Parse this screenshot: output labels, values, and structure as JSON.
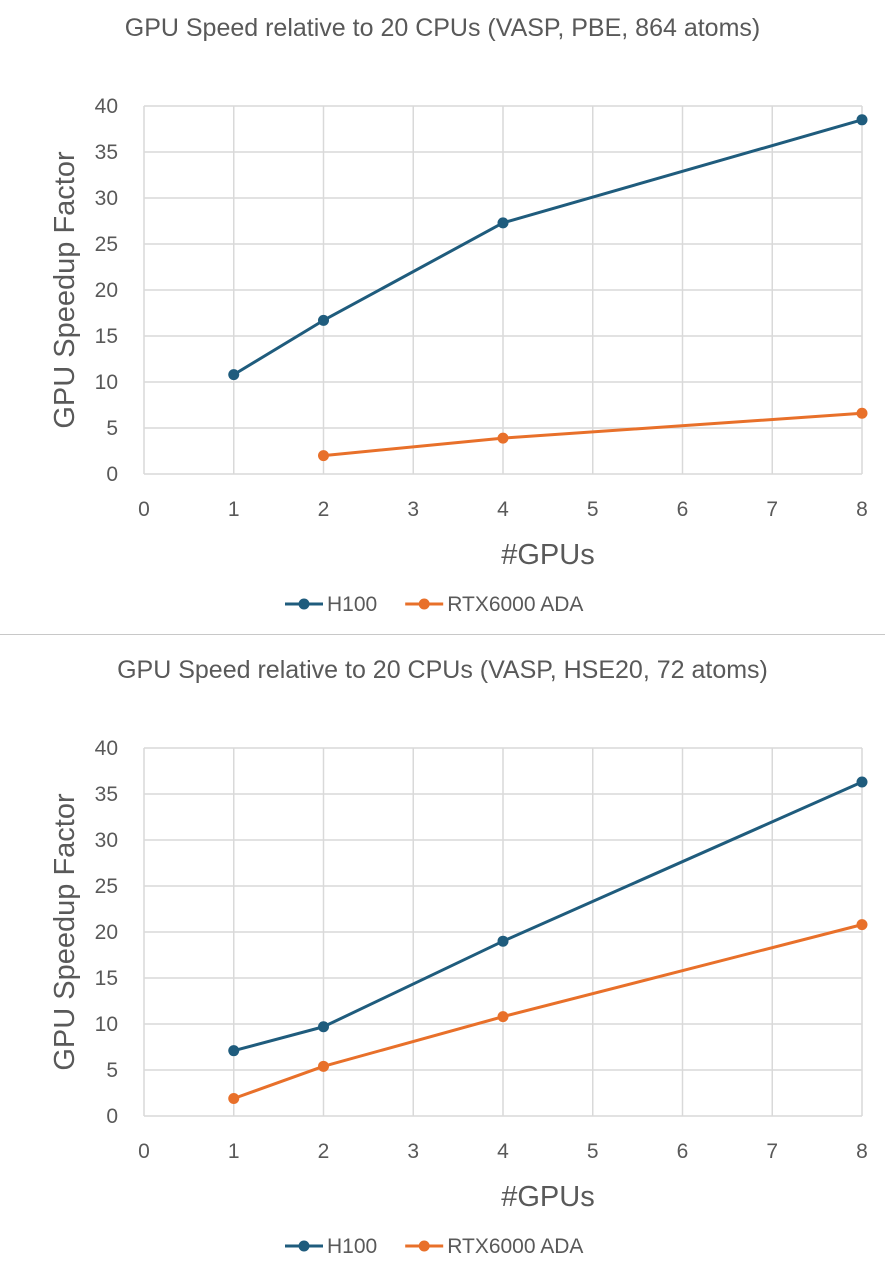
{
  "chart_data": [
    {
      "type": "line",
      "title": "GPU Speed relative to 20 CPUs (VASP, PBE, 864 atoms)",
      "xlabel": "#GPUs",
      "ylabel": "GPU Speedup Factor",
      "xlim": [
        0,
        8
      ],
      "ylim": [
        0,
        40
      ],
      "xticks": [
        "0",
        "1",
        "2",
        "3",
        "4",
        "5",
        "6",
        "7",
        "8"
      ],
      "yticks": [
        "0",
        "5",
        "10",
        "15",
        "20",
        "25",
        "30",
        "35",
        "40"
      ],
      "grid": true,
      "legend_position": "bottom",
      "series": [
        {
          "name": "H100",
          "color": "#1f5c7d",
          "x": [
            1,
            2,
            4,
            8
          ],
          "y": [
            10.8,
            16.7,
            27.3,
            38.5
          ]
        },
        {
          "name": "RTX6000 ADA",
          "color": "#e8702a",
          "x": [
            2,
            4,
            8
          ],
          "y": [
            2.0,
            3.9,
            6.6
          ]
        }
      ]
    },
    {
      "type": "line",
      "title": "GPU Speed relative to 20 CPUs (VASP, HSE20, 72 atoms)",
      "xlabel": "#GPUs",
      "ylabel": "GPU Speedup Factor",
      "xlim": [
        0,
        8
      ],
      "ylim": [
        0,
        40
      ],
      "xticks": [
        "0",
        "1",
        "2",
        "3",
        "4",
        "5",
        "6",
        "7",
        "8"
      ],
      "yticks": [
        "0",
        "5",
        "10",
        "15",
        "20",
        "25",
        "30",
        "35",
        "40"
      ],
      "grid": true,
      "legend_position": "bottom",
      "series": [
        {
          "name": "H100",
          "color": "#1f5c7d",
          "x": [
            1,
            2,
            4,
            8
          ],
          "y": [
            7.1,
            9.7,
            19.0,
            36.3
          ]
        },
        {
          "name": "RTX6000 ADA",
          "color": "#e8702a",
          "x": [
            1,
            2,
            4,
            8
          ],
          "y": [
            1.9,
            5.4,
            10.8,
            20.8
          ]
        }
      ]
    }
  ]
}
